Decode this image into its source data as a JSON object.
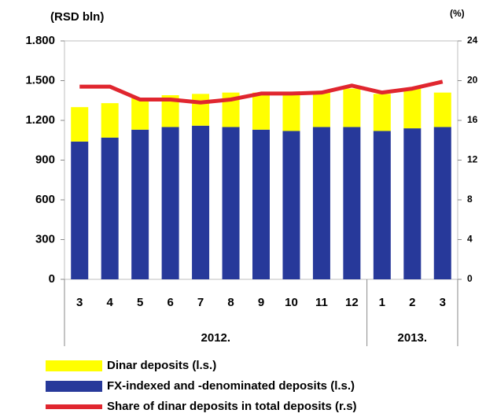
{
  "chart_data": {
    "type": "bar",
    "y_label": "(RSD bln)",
    "y2_label": "(%)",
    "groups": [
      {
        "label": "2012.",
        "categories": [
          "3",
          "4",
          "5",
          "6",
          "7",
          "8",
          "9",
          "10",
          "11",
          "12"
        ]
      },
      {
        "label": "2013.",
        "categories": [
          "1",
          "2",
          "3"
        ]
      }
    ],
    "series": [
      {
        "name": "Dinar deposits (l.s.)",
        "color": "#ffff00",
        "stacked": true,
        "values": [
          260,
          260,
          240,
          240,
          240,
          260,
          280,
          290,
          270,
          290,
          280,
          300,
          260
        ]
      },
      {
        "name": "FX-indexed and -denominated deposits (l.s.)",
        "color": "#27399a",
        "stacked": true,
        "values": [
          1040,
          1070,
          1130,
          1150,
          1160,
          1150,
          1130,
          1120,
          1150,
          1150,
          1120,
          1140,
          1150
        ]
      },
      {
        "name": "Share of dinar deposits in total deposits (r.s)",
        "color": "#e0262f",
        "type": "line",
        "axis": "y2",
        "values": [
          19.4,
          19.4,
          18.1,
          18.1,
          17.8,
          18.1,
          18.7,
          18.7,
          18.8,
          19.5,
          18.8,
          19.2,
          19.9
        ]
      }
    ],
    "ylim": [
      0,
      1800
    ],
    "yticks": [
      0,
      {
        "value": 300,
        "label": "300"
      },
      {
        "value": 600,
        "label": "600"
      },
      {
        "value": 900,
        "label": "900"
      },
      {
        "value": 1200,
        "label": "1.200"
      },
      {
        "value": 1500,
        "label": "1.500"
      },
      {
        "value": 1800,
        "label": "1.800"
      }
    ],
    "y2lim": [
      0,
      24
    ],
    "y2ticks": [
      0,
      4,
      8,
      12,
      16,
      20,
      24
    ],
    "grid": false
  }
}
